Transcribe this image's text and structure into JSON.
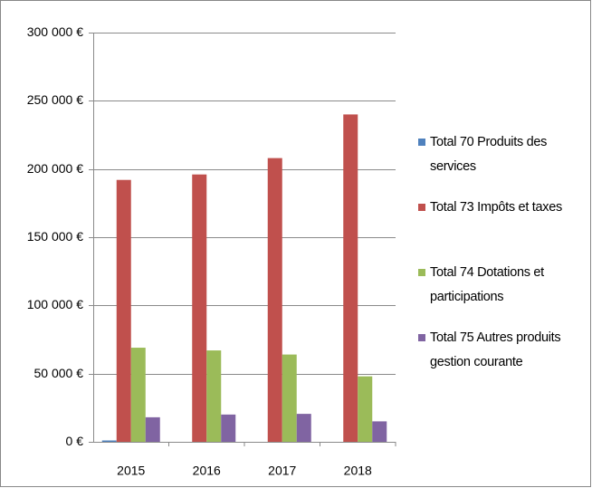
{
  "chart_data": {
    "type": "bar",
    "categories": [
      "2015",
      "2016",
      "2017",
      "2018"
    ],
    "series": [
      {
        "name": "Total 70 Produits des services",
        "color": "#4f81bd",
        "values": [
          1000,
          0,
          0,
          0
        ]
      },
      {
        "name": "Total 73 Impôts et taxes",
        "color": "#c0504d",
        "values": [
          192000,
          196000,
          208000,
          240000
        ]
      },
      {
        "name": "Total 74 Dotations et participations",
        "color": "#9bbb59",
        "values": [
          69000,
          67000,
          64000,
          48000
        ]
      },
      {
        "name": "Total 75 Autres produits gestion courante",
        "color": "#8064a2",
        "values": [
          18000,
          20000,
          20500,
          15000
        ]
      }
    ],
    "ylim": [
      0,
      300000
    ],
    "yticks": [
      {
        "value": 0,
        "label": "0 €"
      },
      {
        "value": 50000,
        "label": "50 000 €"
      },
      {
        "value": 100000,
        "label": "100 000 €"
      },
      {
        "value": 150000,
        "label": "150 000 €"
      },
      {
        "value": 200000,
        "label": "200 000 €"
      },
      {
        "value": 250000,
        "label": "250 000 €"
      },
      {
        "value": 300000,
        "label": "300 000 €"
      }
    ],
    "grid": true,
    "legend": "right"
  }
}
